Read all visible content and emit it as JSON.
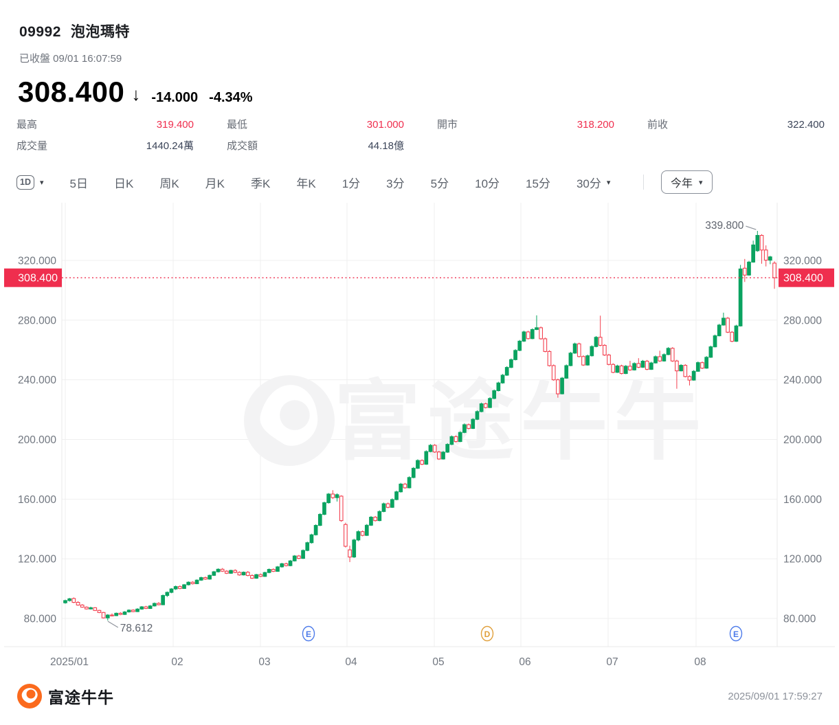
{
  "header": {
    "code": "09992",
    "name": "泡泡瑪特",
    "status": "已收盤 09/01 16:07:59",
    "price": "308.400",
    "arrow_icon": "↓",
    "change": "-14.000",
    "change_pct": "-4.34%"
  },
  "stats": {
    "row1": [
      {
        "label": "最高",
        "value": "319.400",
        "tone": "down"
      },
      {
        "label": "最低",
        "value": "301.000",
        "tone": "down"
      },
      {
        "label": "開市",
        "value": "318.200",
        "tone": "down"
      },
      {
        "label": "前收",
        "value": "322.400",
        "tone": "neutral"
      }
    ],
    "row2": [
      {
        "label": "成交量",
        "value": "1440.24萬",
        "tone": "neutral"
      },
      {
        "label": "成交額",
        "value": "44.18億",
        "tone": "neutral"
      }
    ]
  },
  "toolbar": {
    "items": [
      {
        "label": "1D",
        "kind": "chip",
        "dropdown": true
      },
      {
        "label": "5日"
      },
      {
        "label": "日K"
      },
      {
        "label": "周K"
      },
      {
        "label": "月K"
      },
      {
        "label": "季K"
      },
      {
        "label": "年K"
      },
      {
        "label": "1分"
      },
      {
        "label": "3分"
      },
      {
        "label": "5分"
      },
      {
        "label": "10分"
      },
      {
        "label": "15分"
      },
      {
        "label": "30分",
        "dropdown": true
      }
    ],
    "range_label": "今年",
    "caret_icon": "▾"
  },
  "watermark": {
    "text": "富途牛牛"
  },
  "footer": {
    "brand": "富途牛牛",
    "timestamp": "2025/09/01 17:59:27"
  },
  "chart_data": {
    "type": "candlestick",
    "symbol": "09992",
    "current_price": 308.4,
    "current_price_label": "308.400",
    "high_annotation": "339.800",
    "low_annotation": "78.612",
    "legend_position": "none",
    "grid": true,
    "ylim": [
      61,
      358
    ],
    "y_axis": {
      "ticks": [
        {
          "value": 320,
          "label": "320.000"
        },
        {
          "value": 280,
          "label": "280.000"
        },
        {
          "value": 240,
          "label": "240.000"
        },
        {
          "value": 200,
          "label": "200.000"
        },
        {
          "value": 160,
          "label": "160.000"
        },
        {
          "value": 120,
          "label": "120.000"
        },
        {
          "value": 80,
          "label": "80.000"
        }
      ]
    },
    "x_axis": {
      "months": [
        {
          "label": "2025/01",
          "x": 95
        },
        {
          "label": "02",
          "x": 252
        },
        {
          "label": "03",
          "x": 379
        },
        {
          "label": "04",
          "x": 505
        },
        {
          "label": "05",
          "x": 632
        },
        {
          "label": "06",
          "x": 758
        },
        {
          "label": "07",
          "x": 885
        },
        {
          "label": "08",
          "x": 1013
        }
      ]
    },
    "markers": [
      {
        "label": "E",
        "x": 449,
        "color": "#4d7bea"
      },
      {
        "label": "D",
        "x": 709,
        "color": "#e09f3a"
      },
      {
        "label": "E",
        "x": 1071,
        "color": "#4d7bea"
      }
    ],
    "colors": {
      "up": "#0aa360",
      "down_candle": "#f3404f",
      "down": "#ef2e4e",
      "neutral_value": "#3b4458",
      "grid": "#efefef",
      "border": "#e9e9e9",
      "axis_text": "#70767f",
      "annotation_text": "#5f646e",
      "leader_line": "#8f949c",
      "watermark": "#f3f3f4"
    },
    "candles": [
      [
        90.5,
        92.6,
        89.9,
        92.0
      ],
      [
        92.0,
        93.8,
        91.3,
        93.2
      ],
      [
        93.4,
        94.1,
        90.3,
        90.8
      ],
      [
        90.8,
        91.6,
        88.6,
        89.0
      ],
      [
        89.0,
        89.6,
        87.2,
        87.6
      ],
      [
        87.6,
        88.1,
        86.0,
        86.4
      ],
      [
        86.4,
        87.9,
        86.0,
        87.2
      ],
      [
        87.2,
        87.6,
        85.0,
        85.4
      ],
      [
        85.4,
        85.8,
        83.6,
        84.0
      ],
      [
        84.0,
        84.4,
        80.0,
        80.4
      ],
      [
        80.4,
        82.9,
        78.612,
        82.3
      ],
      [
        82.3,
        83.4,
        81.4,
        81.9
      ],
      [
        81.9,
        84.0,
        81.6,
        83.5
      ],
      [
        83.5,
        84.2,
        82.2,
        82.7
      ],
      [
        82.7,
        84.9,
        82.4,
        84.4
      ],
      [
        84.4,
        86.1,
        83.9,
        85.6
      ],
      [
        85.6,
        86.2,
        84.2,
        84.6
      ],
      [
        84.6,
        86.9,
        84.3,
        86.3
      ],
      [
        86.3,
        88.3,
        85.9,
        87.8
      ],
      [
        87.8,
        88.5,
        86.3,
        86.7
      ],
      [
        86.7,
        89.0,
        86.4,
        88.4
      ],
      [
        88.4,
        90.7,
        88.0,
        90.1
      ],
      [
        90.1,
        91.0,
        88.8,
        89.2
      ],
      [
        89.2,
        96.1,
        88.9,
        95.4
      ],
      [
        95.4,
        98.1,
        94.4,
        97.5
      ],
      [
        97.5,
        100.3,
        96.9,
        99.8
      ],
      [
        99.8,
        102.1,
        99.1,
        101.4
      ],
      [
        101.4,
        102.2,
        99.6,
        100.1
      ],
      [
        100.1,
        103.1,
        99.8,
        102.6
      ],
      [
        102.6,
        104.9,
        102.1,
        104.3
      ],
      [
        104.3,
        105.0,
        102.8,
        103.3
      ],
      [
        103.3,
        106.2,
        103.0,
        105.7
      ],
      [
        105.7,
        108.0,
        105.2,
        107.4
      ],
      [
        107.4,
        108.1,
        105.9,
        106.4
      ],
      [
        106.4,
        109.4,
        106.0,
        108.9
      ],
      [
        108.9,
        111.9,
        108.5,
        111.3
      ],
      [
        111.3,
        113.6,
        110.8,
        113.0
      ],
      [
        113.0,
        113.8,
        111.2,
        111.7
      ],
      [
        111.7,
        112.4,
        109.8,
        110.3
      ],
      [
        110.3,
        112.7,
        109.9,
        112.2
      ],
      [
        112.2,
        113.0,
        110.4,
        110.9
      ],
      [
        110.9,
        111.6,
        108.7,
        109.2
      ],
      [
        109.2,
        111.5,
        108.8,
        111.0
      ],
      [
        111.0,
        111.8,
        108.3,
        108.8
      ],
      [
        108.8,
        109.6,
        106.5,
        107.0
      ],
      [
        107.0,
        109.9,
        106.6,
        109.4
      ],
      [
        109.4,
        110.2,
        107.7,
        108.2
      ],
      [
        108.2,
        111.3,
        107.9,
        110.8
      ],
      [
        110.8,
        113.5,
        110.3,
        112.9
      ],
      [
        112.9,
        113.6,
        111.1,
        111.6
      ],
      [
        111.6,
        115.2,
        111.3,
        114.6
      ],
      [
        114.6,
        117.3,
        114.1,
        116.7
      ],
      [
        116.7,
        117.4,
        114.9,
        115.4
      ],
      [
        115.4,
        119.2,
        115.0,
        118.6
      ],
      [
        118.6,
        122.5,
        118.2,
        121.9
      ],
      [
        121.9,
        122.6,
        119.8,
        120.3
      ],
      [
        120.3,
        126.3,
        119.9,
        125.6
      ],
      [
        125.6,
        131.5,
        125.1,
        130.8
      ],
      [
        130.8,
        136.8,
        130.2,
        136.1
      ],
      [
        136.1,
        143.1,
        135.6,
        142.4
      ],
      [
        142.4,
        150.6,
        141.9,
        149.8
      ],
      [
        149.8,
        158.3,
        149.2,
        157.6
      ],
      [
        157.6,
        164.1,
        157.0,
        163.4
      ],
      [
        163.4,
        166.0,
        160.2,
        161.0
      ],
      [
        161.0,
        163.9,
        158.4,
        163.0
      ],
      [
        162.0,
        162.6,
        144.8,
        145.6
      ],
      [
        143.0,
        144.2,
        127.6,
        128.4
      ],
      [
        126.0,
        128.8,
        117.8,
        121.2
      ],
      [
        121.2,
        133.5,
        120.6,
        132.6
      ],
      [
        132.6,
        139.1,
        131.8,
        138.2
      ],
      [
        138.2,
        139.0,
        135.1,
        135.7
      ],
      [
        135.7,
        143.3,
        135.3,
        142.5
      ],
      [
        142.5,
        148.7,
        142.0,
        147.9
      ],
      [
        147.9,
        148.7,
        145.0,
        145.6
      ],
      [
        145.6,
        152.5,
        145.2,
        151.7
      ],
      [
        151.7,
        157.7,
        151.2,
        156.9
      ],
      [
        156.9,
        157.7,
        153.9,
        154.5
      ],
      [
        154.5,
        160.5,
        154.1,
        159.7
      ],
      [
        159.7,
        165.7,
        159.2,
        164.9
      ],
      [
        164.9,
        170.9,
        164.4,
        170.1
      ],
      [
        170.1,
        170.9,
        167.0,
        167.6
      ],
      [
        167.6,
        175.3,
        167.2,
        174.5
      ],
      [
        174.5,
        181.5,
        174.0,
        180.7
      ],
      [
        180.7,
        186.7,
        180.2,
        185.9
      ],
      [
        185.9,
        186.7,
        182.8,
        183.4
      ],
      [
        183.4,
        192.7,
        183.0,
        191.9
      ],
      [
        191.9,
        196.9,
        191.4,
        196.1
      ],
      [
        196.1,
        196.9,
        191.0,
        191.6
      ],
      [
        191.6,
        192.4,
        186.3,
        186.9
      ],
      [
        186.9,
        192.3,
        186.5,
        191.5
      ],
      [
        191.5,
        197.5,
        191.0,
        196.7
      ],
      [
        196.7,
        202.7,
        196.2,
        201.9
      ],
      [
        201.9,
        202.7,
        198.0,
        198.6
      ],
      [
        198.6,
        205.5,
        198.2,
        204.7
      ],
      [
        204.7,
        210.7,
        204.2,
        209.9
      ],
      [
        209.9,
        210.7,
        206.8,
        207.4
      ],
      [
        207.4,
        214.3,
        207.0,
        213.5
      ],
      [
        213.5,
        219.5,
        213.0,
        218.7
      ],
      [
        218.7,
        224.7,
        218.2,
        223.9
      ],
      [
        223.9,
        224.7,
        220.8,
        221.4
      ],
      [
        221.4,
        228.3,
        221.0,
        227.5
      ],
      [
        227.5,
        233.5,
        227.0,
        232.7
      ],
      [
        232.7,
        238.7,
        232.2,
        237.9
      ],
      [
        237.9,
        243.9,
        237.4,
        243.1
      ],
      [
        243.1,
        249.1,
        242.6,
        248.3
      ],
      [
        248.3,
        254.3,
        247.8,
        253.5
      ],
      [
        253.5,
        260.5,
        253.0,
        259.7
      ],
      [
        259.7,
        266.7,
        259.2,
        265.9
      ],
      [
        265.9,
        272.9,
        265.4,
        272.1
      ],
      [
        272.1,
        272.9,
        267.0,
        267.6
      ],
      [
        267.6,
        274.5,
        267.2,
        273.7
      ],
      [
        273.7,
        283.2,
        273.3,
        274.9
      ],
      [
        274.9,
        275.7,
        266.9,
        267.5
      ],
      [
        267.5,
        268.3,
        258.4,
        259.0
      ],
      [
        259.0,
        259.8,
        248.9,
        249.5
      ],
      [
        249.5,
        250.3,
        239.4,
        240.0
      ],
      [
        240.0,
        240.8,
        228.0,
        230.6
      ],
      [
        230.6,
        241.9,
        230.2,
        241.1
      ],
      [
        241.1,
        250.3,
        240.7,
        249.5
      ],
      [
        249.5,
        258.7,
        249.1,
        257.9
      ],
      [
        257.9,
        264.9,
        257.4,
        264.1
      ],
      [
        264.1,
        264.9,
        255.0,
        255.6
      ],
      [
        255.6,
        256.4,
        249.3,
        249.9
      ],
      [
        249.9,
        256.9,
        249.5,
        256.1
      ],
      [
        256.1,
        263.1,
        255.6,
        262.3
      ],
      [
        262.3,
        269.3,
        261.8,
        268.5
      ],
      [
        268.5,
        283.0,
        262.5,
        263.1
      ],
      [
        263.1,
        263.9,
        256.0,
        256.6
      ],
      [
        256.6,
        257.4,
        249.7,
        250.3
      ],
      [
        250.3,
        251.1,
        244.4,
        245.0
      ],
      [
        245.0,
        250.1,
        244.6,
        249.3
      ],
      [
        249.3,
        250.1,
        243.6,
        244.2
      ],
      [
        244.2,
        249.9,
        243.8,
        249.1
      ],
      [
        249.1,
        252.7,
        246.0,
        246.6
      ],
      [
        246.6,
        251.7,
        246.2,
        250.9
      ],
      [
        250.9,
        254.5,
        247.8,
        248.4
      ],
      [
        248.4,
        253.3,
        248.0,
        252.5
      ],
      [
        252.5,
        253.3,
        246.4,
        247.0
      ],
      [
        247.0,
        252.1,
        246.6,
        251.3
      ],
      [
        251.3,
        256.3,
        250.9,
        255.5
      ],
      [
        255.5,
        259.5,
        252.0,
        252.6
      ],
      [
        252.6,
        257.7,
        252.2,
        256.9
      ],
      [
        256.9,
        261.9,
        256.5,
        261.1
      ],
      [
        261.1,
        261.9,
        252.0,
        252.6
      ],
      [
        252.6,
        253.4,
        234.0,
        246.0
      ],
      [
        246.0,
        250.5,
        245.6,
        249.7
      ],
      [
        249.7,
        250.5,
        241.6,
        242.2
      ],
      [
        242.2,
        243.0,
        236.2,
        239.8
      ],
      [
        239.8,
        246.5,
        239.4,
        245.7
      ],
      [
        245.7,
        252.3,
        245.3,
        251.5
      ],
      [
        251.5,
        252.3,
        247.2,
        247.8
      ],
      [
        247.8,
        255.9,
        247.4,
        255.1
      ],
      [
        255.1,
        262.9,
        254.7,
        262.1
      ],
      [
        262.1,
        270.3,
        261.7,
        269.5
      ],
      [
        269.5,
        277.5,
        269.1,
        276.7
      ],
      [
        276.7,
        285.0,
        276.3,
        281.3
      ],
      [
        281.3,
        282.1,
        271.3,
        271.9
      ],
      [
        271.9,
        272.7,
        265.2,
        265.8
      ],
      [
        265.8,
        276.9,
        265.4,
        276.1
      ],
      [
        276.1,
        317.0,
        275.7,
        314.3
      ],
      [
        314.8,
        321.0,
        305.6,
        310.2
      ],
      [
        310.2,
        319.7,
        309.8,
        318.9
      ],
      [
        318.9,
        333.3,
        318.5,
        330.4
      ],
      [
        326.5,
        339.8,
        325.8,
        336.8
      ],
      [
        336.8,
        337.6,
        317.8,
        327.0
      ],
      [
        327.0,
        330.1,
        316.0,
        320.2
      ],
      [
        320.2,
        323.1,
        317.5,
        322.4
      ],
      [
        318.2,
        319.4,
        301.0,
        308.4
      ]
    ]
  }
}
